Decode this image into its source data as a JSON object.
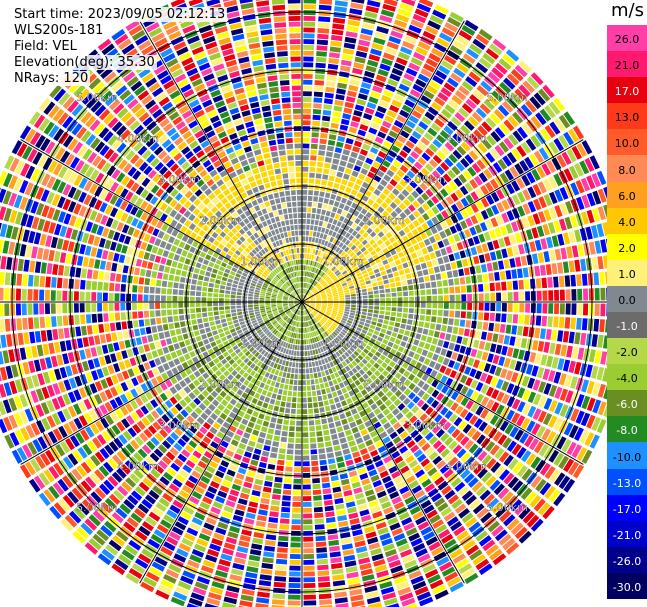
{
  "header": {
    "start_time": "Start time: 2023/09/05 02:12:13",
    "station": "WLS200s-181",
    "field": "Field: VEL",
    "elevation": "Elevation(deg): 35.30",
    "nrays": "NRays: 120"
  },
  "colorbar": {
    "unit": "m/s",
    "ticks": [
      "26.0",
      "21.0",
      "17.0",
      "13.0",
      "10.0",
      "8.0",
      "6.0",
      "4.0",
      "2.0",
      "1.0",
      "0.0",
      "-1.0",
      "-2.0",
      "-4.0",
      "-6.0",
      "-8.0",
      "-10.0",
      "-13.0",
      "-17.0",
      "-21.0",
      "-26.0",
      "-30.0"
    ],
    "colors": [
      "#ff3ea8",
      "#ff1a70",
      "#e8000f",
      "#ff3a1a",
      "#ff5a2a",
      "#ff8a55",
      "#ffa020",
      "#ffc800",
      "#ffff00",
      "#fff07a",
      "#808890",
      "#6b6b6b",
      "#b4d84a",
      "#9acd32",
      "#6b8e23",
      "#228b22",
      "#1e90ff",
      "#0050ff",
      "#0000ff",
      "#0000cd",
      "#00008b",
      "#000060"
    ]
  },
  "chart_data": {
    "type": "polar_ppi",
    "field": "VEL",
    "unit": "m/s",
    "nrays": 120,
    "elevation_deg": 35.3,
    "range_rings_km": [
      1.0,
      2.0,
      3.0,
      4.0,
      5.0
    ],
    "ring_labels": [
      "1.00km",
      "2.00km",
      "3.00km",
      "4.00km",
      "5.00km"
    ],
    "spokes_deg": [
      0,
      30,
      60,
      90,
      120,
      150,
      180,
      210,
      240,
      270,
      300,
      330
    ],
    "pattern": {
      "inner_km": 0.7,
      "signal_edge_km": 2.4,
      "noise_outer_km": 5.6,
      "positive_sector_deg": [
        300,
        80
      ],
      "positive_inner_sector_deg": [
        40,
        140
      ]
    }
  }
}
